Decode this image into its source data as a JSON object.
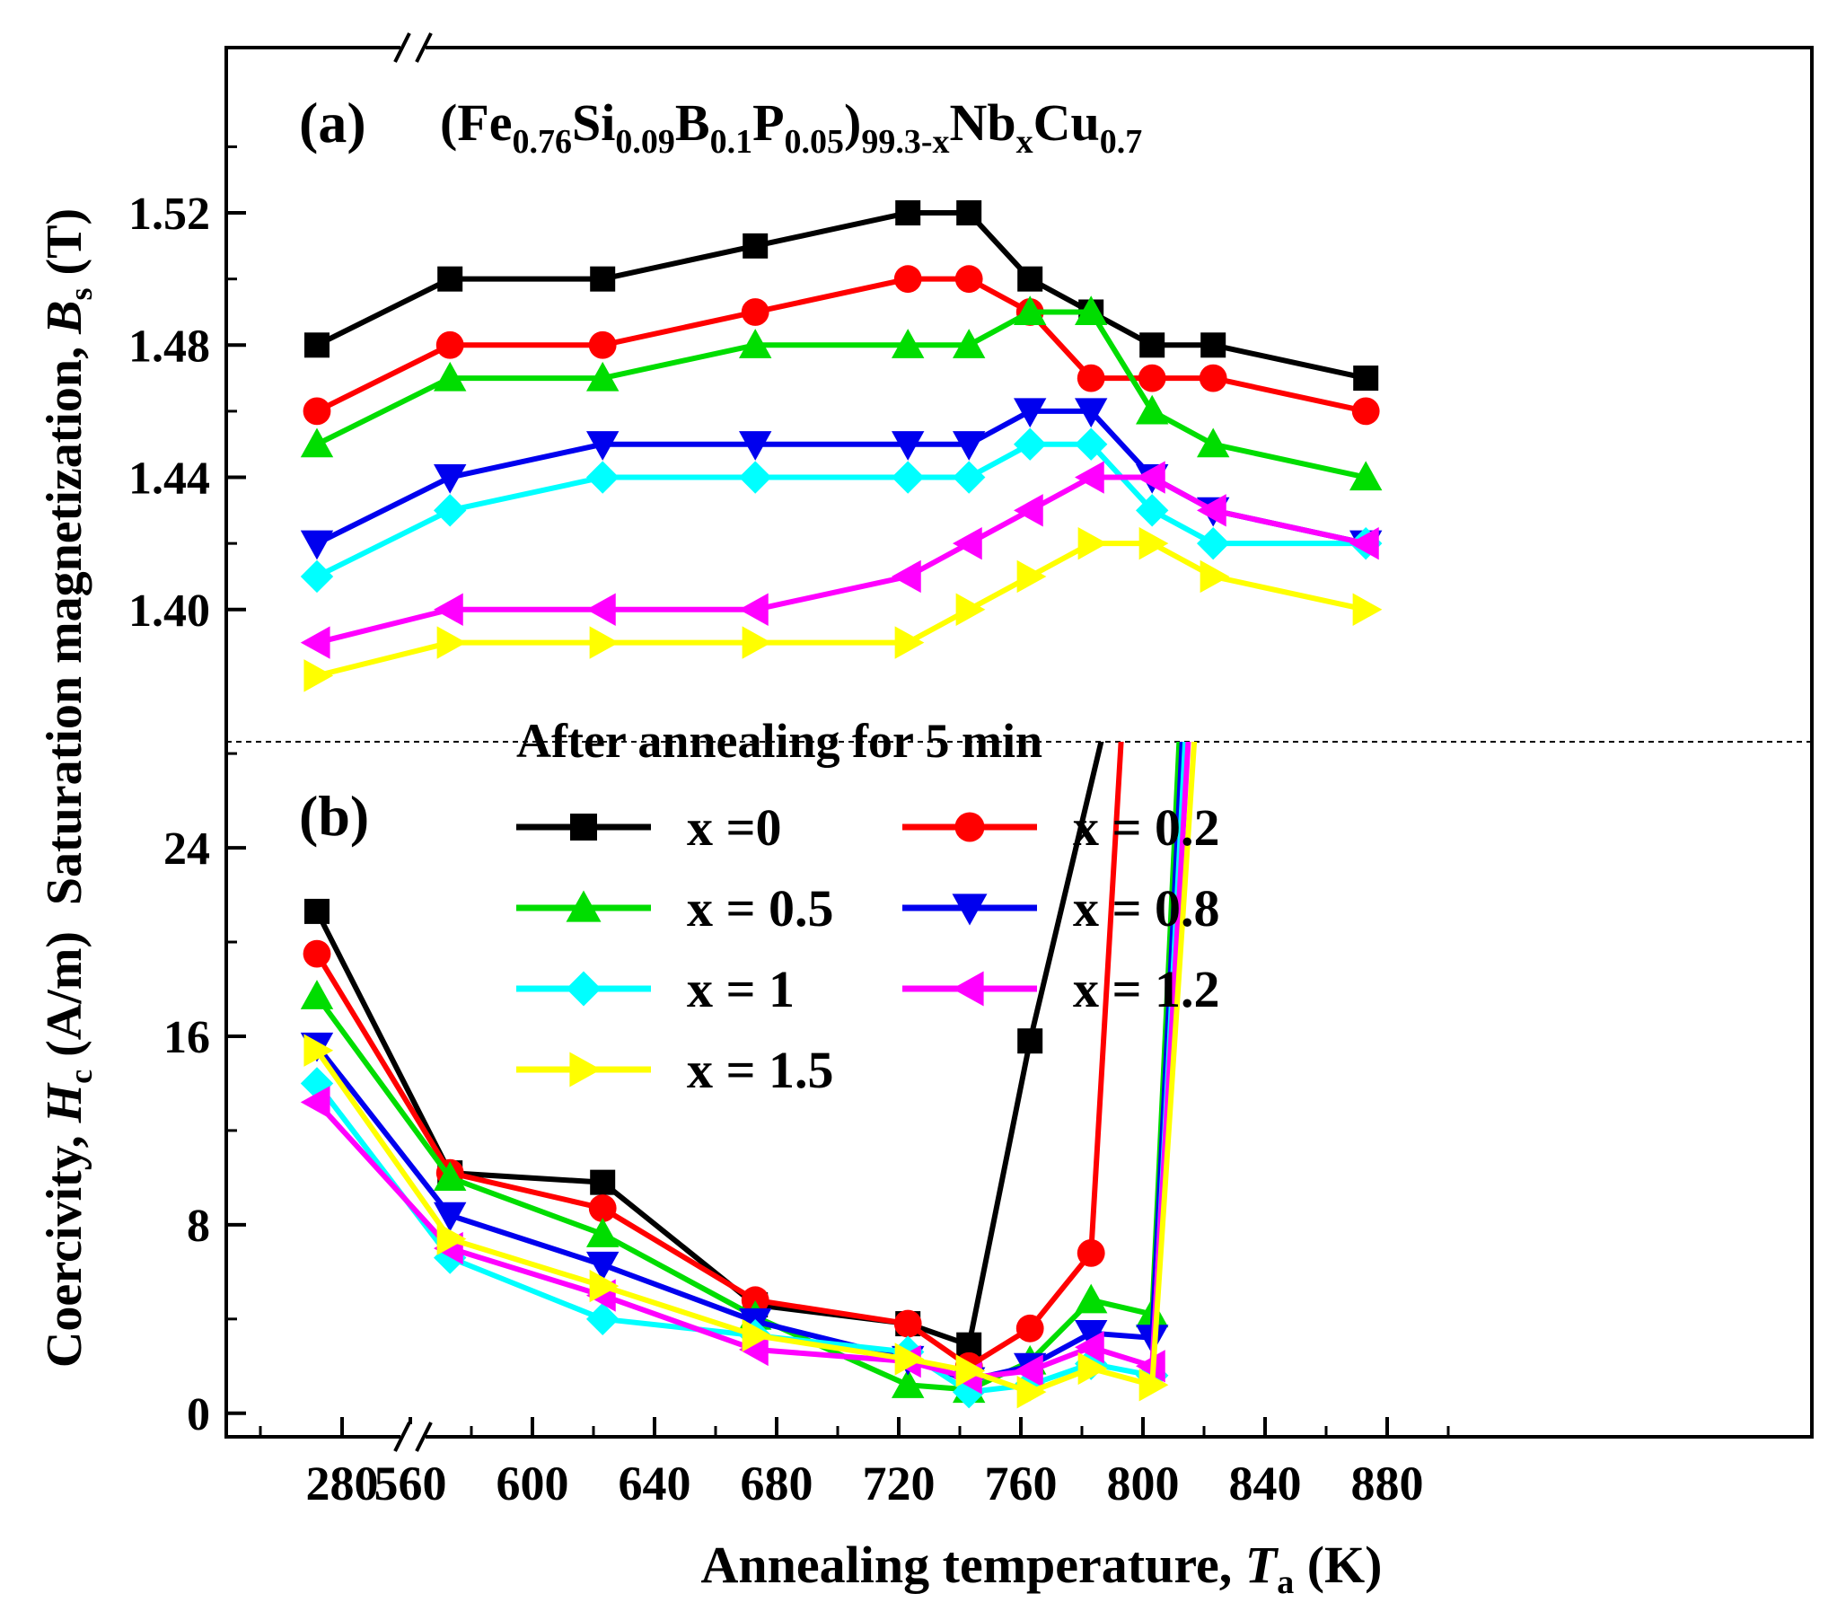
{
  "chart_data": {
    "type": "line",
    "x": [
      "RT",
      573,
      623,
      673,
      723,
      743,
      763,
      783,
      803,
      823,
      873
    ],
    "xaxis": {
      "label_main": "Annealing temperature, ",
      "label_italic": "T",
      "label_sub": "a",
      "label_unit": " (K)",
      "ticks": [
        "280",
        "560",
        "600",
        "640",
        "680",
        "720",
        "760",
        "800",
        "840",
        "880"
      ],
      "broken": true
    },
    "formula": {
      "parts": [
        {
          "t": "(Fe",
          "sub": false
        },
        {
          "t": "0.76",
          "sub": true
        },
        {
          "t": "Si",
          "sub": false
        },
        {
          "t": "0.09",
          "sub": true
        },
        {
          "t": "B",
          "sub": false
        },
        {
          "t": "0.1",
          "sub": true
        },
        {
          "t": "P",
          "sub": false
        },
        {
          "t": "0.05",
          "sub": true
        },
        {
          "t": ")",
          "sub": false
        },
        {
          "t": "99.3-x",
          "sub": true
        },
        {
          "t": "Nb",
          "sub": false
        },
        {
          "t": "x",
          "sub": true
        },
        {
          "t": "Cu",
          "sub": false
        },
        {
          "t": "0.7",
          "sub": true
        }
      ]
    },
    "divider_label": "After annealing for 5 min",
    "panels": [
      {
        "id": "a",
        "panel_label": "(a)",
        "ylabel_main": "Saturation magnetization, ",
        "ylabel_italic": "B",
        "ylabel_sub": "s",
        "ylabel_unit": " (T)",
        "ylim": [
          1.36,
          1.57
        ],
        "yticks": [
          "1.40",
          "1.44",
          "1.48",
          "1.52"
        ],
        "ytick_values": [
          1.4,
          1.44,
          1.48,
          1.52
        ],
        "series": [
          {
            "name": "x  =0",
            "color": "#000000",
            "marker": "square",
            "values": [
              1.48,
              1.5,
              1.5,
              1.51,
              1.52,
              1.52,
              1.5,
              1.49,
              1.48,
              1.48,
              1.47
            ]
          },
          {
            "name": "x = 0.2",
            "color": "#ff0000",
            "marker": "circle",
            "values": [
              1.46,
              1.48,
              1.48,
              1.49,
              1.5,
              1.5,
              1.49,
              1.47,
              1.47,
              1.47,
              1.46
            ]
          },
          {
            "name": "x = 0.5",
            "color": "#00dd00",
            "marker": "triangle-up",
            "values": [
              1.45,
              1.47,
              1.47,
              1.48,
              1.48,
              1.48,
              1.49,
              1.49,
              1.46,
              1.45,
              1.44
            ]
          },
          {
            "name": "x = 0.8",
            "color": "#0000ee",
            "marker": "triangle-down",
            "values": [
              1.42,
              1.44,
              1.45,
              1.45,
              1.45,
              1.45,
              1.46,
              1.46,
              1.44,
              1.43,
              1.42
            ]
          },
          {
            "name": "x = 1",
            "color": "#00ffff",
            "marker": "diamond",
            "values": [
              1.41,
              1.43,
              1.44,
              1.44,
              1.44,
              1.44,
              1.45,
              1.45,
              1.43,
              1.42,
              1.42
            ]
          },
          {
            "name": "x = 1.2",
            "color": "#ff00ff",
            "marker": "triangle-left",
            "values": [
              1.39,
              1.4,
              1.4,
              1.4,
              1.41,
              1.42,
              1.43,
              1.44,
              1.44,
              1.43,
              1.42
            ]
          },
          {
            "name": "x = 1.5",
            "color": "#ffff00",
            "marker": "triangle-right",
            "values": [
              1.38,
              1.39,
              1.39,
              1.39,
              1.39,
              1.4,
              1.41,
              1.42,
              1.42,
              1.41,
              1.4
            ]
          }
        ]
      },
      {
        "id": "b",
        "panel_label": "(b)",
        "ylabel_main": "Coercivity, ",
        "ylabel_italic": "H",
        "ylabel_sub": "c",
        "ylabel_unit": " (A/m)",
        "ylim": [
          -1,
          28.5
        ],
        "yticks": [
          "0",
          "8",
          "16",
          "24"
        ],
        "ytick_values": [
          0,
          8,
          16,
          24
        ],
        "series": [
          {
            "name": "x  =0",
            "color": "#000000",
            "marker": "square",
            "values": [
              21.3,
              10.2,
              9.8,
              4.6,
              3.8,
              2.9,
              15.8,
              null,
              null,
              null,
              null
            ],
            "offscale_to": 787
          },
          {
            "name": "x = 0.2",
            "color": "#ff0000",
            "marker": "circle",
            "values": [
              19.5,
              10.2,
              8.7,
              4.8,
              3.8,
              2.0,
              3.6,
              6.8,
              null,
              null,
              null
            ],
            "offscale_to": 793
          },
          {
            "name": "x = 0.5",
            "color": "#00dd00",
            "marker": "triangle-up",
            "values": [
              17.7,
              10.0,
              7.6,
              4.1,
              1.2,
              1.0,
              2.2,
              4.8,
              4.2,
              null,
              null
            ],
            "offscale_to": 812
          },
          {
            "name": "x = 0.8",
            "color": "#0000ee",
            "marker": "triangle-down",
            "values": [
              15.6,
              8.4,
              6.3,
              3.9,
              2.3,
              1.4,
              2.0,
              3.4,
              3.2,
              null,
              null
            ],
            "offscale_to": 813
          },
          {
            "name": "x = 1",
            "color": "#00ffff",
            "marker": "diamond",
            "values": [
              14.0,
              6.6,
              4.0,
              3.3,
              2.6,
              0.9,
              1.2,
              2.1,
              1.6,
              null,
              null
            ],
            "offscale_to": 814
          },
          {
            "name": "x = 1.2",
            "color": "#ff00ff",
            "marker": "triangle-left",
            "values": [
              13.2,
              7.0,
              5.0,
              2.7,
              2.2,
              1.5,
              1.8,
              2.8,
              2.0,
              null,
              null
            ],
            "offscale_to": 815
          },
          {
            "name": "x = 1.5",
            "color": "#ffff00",
            "marker": "triangle-right",
            "values": [
              15.4,
              7.4,
              5.4,
              3.3,
              2.3,
              1.8,
              0.9,
              1.9,
              1.2,
              null,
              null
            ],
            "offscale_to": 817
          }
        ]
      }
    ],
    "legend": {
      "placement": "inside panel (b), upper-middle",
      "entries": [
        "x  =0",
        "x = 0.2",
        "x = 0.5",
        "x = 0.8",
        "x = 1",
        "x = 1.2",
        "x = 1.5"
      ]
    }
  }
}
